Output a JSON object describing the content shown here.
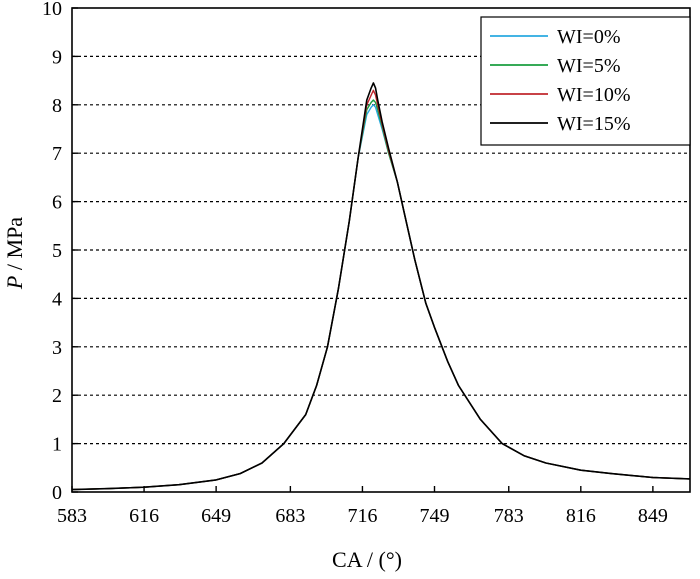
{
  "chart_data": {
    "type": "line",
    "title": "",
    "xlabel": "CA / (°)",
    "ylabel_italic": "P",
    "ylabel_rest": " / MPa",
    "xlim": [
      583,
      866
    ],
    "ylim": [
      0,
      10
    ],
    "x_ticks": [
      583,
      616,
      649,
      683,
      716,
      749,
      783,
      816,
      849
    ],
    "y_ticks": [
      0,
      1,
      2,
      3,
      4,
      5,
      6,
      7,
      8,
      9,
      10
    ],
    "grid": "horizontal dashed",
    "legend_position": "top-right",
    "series": [
      {
        "name": "WI=0%",
        "color": "#29aae1",
        "x": [
          583,
          600,
          616,
          632,
          649,
          660,
          670,
          680,
          690,
          695,
          700,
          705,
          710,
          714,
          718,
          720,
          721,
          722,
          723,
          725,
          728,
          732,
          735,
          740,
          745,
          749,
          755,
          760,
          770,
          780,
          790,
          800,
          816,
          830,
          849,
          866
        ],
        "y": [
          0.05,
          0.07,
          0.1,
          0.15,
          0.25,
          0.38,
          0.6,
          1.0,
          1.6,
          2.2,
          3.0,
          4.2,
          5.6,
          6.9,
          7.8,
          7.95,
          8.0,
          7.95,
          7.8,
          7.5,
          7.0,
          6.4,
          5.8,
          4.8,
          3.9,
          3.4,
          2.7,
          2.2,
          1.5,
          1.0,
          0.75,
          0.6,
          0.45,
          0.38,
          0.3,
          0.27
        ]
      },
      {
        "name": "WI=5%",
        "color": "#1a9e3f",
        "x": [
          583,
          600,
          616,
          632,
          649,
          660,
          670,
          680,
          690,
          695,
          700,
          705,
          710,
          714,
          718,
          720,
          721,
          722,
          723,
          725,
          728,
          732,
          735,
          740,
          745,
          749,
          755,
          760,
          770,
          780,
          790,
          800,
          816,
          830,
          849,
          866
        ],
        "y": [
          0.05,
          0.07,
          0.1,
          0.15,
          0.25,
          0.38,
          0.6,
          1.0,
          1.6,
          2.2,
          3.0,
          4.2,
          5.6,
          6.9,
          7.9,
          8.05,
          8.1,
          8.05,
          7.9,
          7.55,
          7.0,
          6.4,
          5.8,
          4.8,
          3.9,
          3.4,
          2.7,
          2.2,
          1.5,
          1.0,
          0.75,
          0.6,
          0.45,
          0.38,
          0.3,
          0.27
        ]
      },
      {
        "name": "WI=10%",
        "color": "#c1272d",
        "x": [
          583,
          600,
          616,
          632,
          649,
          660,
          670,
          680,
          690,
          695,
          700,
          705,
          710,
          714,
          718,
          720,
          721,
          722,
          723,
          725,
          728,
          732,
          735,
          740,
          745,
          749,
          755,
          760,
          770,
          780,
          790,
          800,
          816,
          830,
          849,
          866
        ],
        "y": [
          0.05,
          0.07,
          0.1,
          0.15,
          0.25,
          0.38,
          0.6,
          1.0,
          1.6,
          2.2,
          3.0,
          4.2,
          5.6,
          6.9,
          8.0,
          8.2,
          8.3,
          8.2,
          8.0,
          7.6,
          7.05,
          6.4,
          5.8,
          4.8,
          3.9,
          3.4,
          2.7,
          2.2,
          1.5,
          1.0,
          0.75,
          0.6,
          0.45,
          0.38,
          0.3,
          0.27
        ]
      },
      {
        "name": "WI=15%",
        "color": "#000000",
        "x": [
          583,
          600,
          616,
          632,
          649,
          660,
          670,
          680,
          690,
          695,
          700,
          705,
          710,
          714,
          718,
          720,
          721,
          722,
          723,
          725,
          728,
          732,
          735,
          740,
          745,
          749,
          755,
          760,
          770,
          780,
          790,
          800,
          816,
          830,
          849,
          866
        ],
        "y": [
          0.05,
          0.07,
          0.1,
          0.15,
          0.25,
          0.38,
          0.6,
          1.0,
          1.6,
          2.2,
          3.0,
          4.2,
          5.6,
          6.9,
          8.1,
          8.35,
          8.45,
          8.35,
          8.1,
          7.65,
          7.1,
          6.4,
          5.8,
          4.8,
          3.9,
          3.4,
          2.7,
          2.2,
          1.5,
          1.0,
          0.75,
          0.6,
          0.45,
          0.38,
          0.3,
          0.27
        ]
      }
    ]
  }
}
